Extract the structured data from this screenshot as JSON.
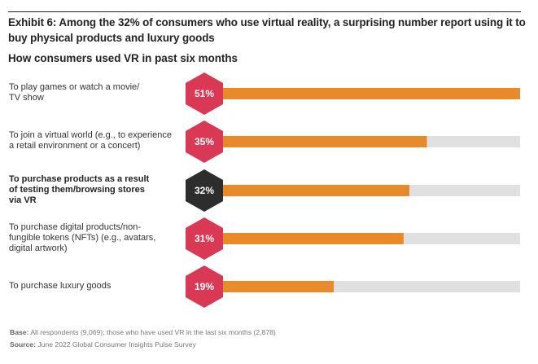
{
  "exhibit_title": "Exhibit 6: Among the 32% of consumers who use virtual reality, a surprising number report using it to buy physical products and luxury goods",
  "chart_data": {
    "type": "bar",
    "orientation": "horizontal",
    "title": "How consumers used VR in past six months",
    "unit": "%",
    "scale_max": 51,
    "categories": [
      "To play games or watch a movie/ TV show",
      "To join a virtual world (e.g., to experience a retail environment or a concert)",
      "To purchase products as a result of testing them/browsing stores via VR",
      "To purchase digital products/non-fungible tokens (NFTs) (e.g., avatars, digital artwork)",
      "To purchase luxury goods"
    ],
    "values": [
      51,
      35,
      32,
      31,
      19
    ],
    "labels": [
      "51%",
      "35%",
      "32%",
      "31%",
      "19%"
    ],
    "highlighted_index": 2,
    "grid": false,
    "legend": "none",
    "colors": {
      "bar": "#e8892a",
      "track": "#e0e0e0",
      "badge": "#d93954",
      "badge_highlight": "#2d2d2d"
    }
  },
  "rows": [
    {
      "label_lines": [
        "To play games or watch a movie/",
        "TV show"
      ]
    },
    {
      "label_lines": [
        "To join a virtual world (e.g., to experience",
        "a retail environment or a concert)"
      ]
    },
    {
      "label_lines": [
        "To purchase products as a result",
        "of testing them/browsing stores",
        "via VR"
      ]
    },
    {
      "label_lines": [
        "To purchase digital products/non-",
        "fungible tokens (NFTs) (e.g., avatars,",
        "digital artwork)"
      ]
    },
    {
      "label_lines": [
        "To purchase luxury goods"
      ]
    }
  ],
  "footer": {
    "base_label": "Base:",
    "base_text": " All respondents (9,069); those who have used VR in the last six months (2,878)",
    "source_label": "Source:",
    "source_text": " June 2022 Global Consumer Insights Pulse Survey"
  }
}
